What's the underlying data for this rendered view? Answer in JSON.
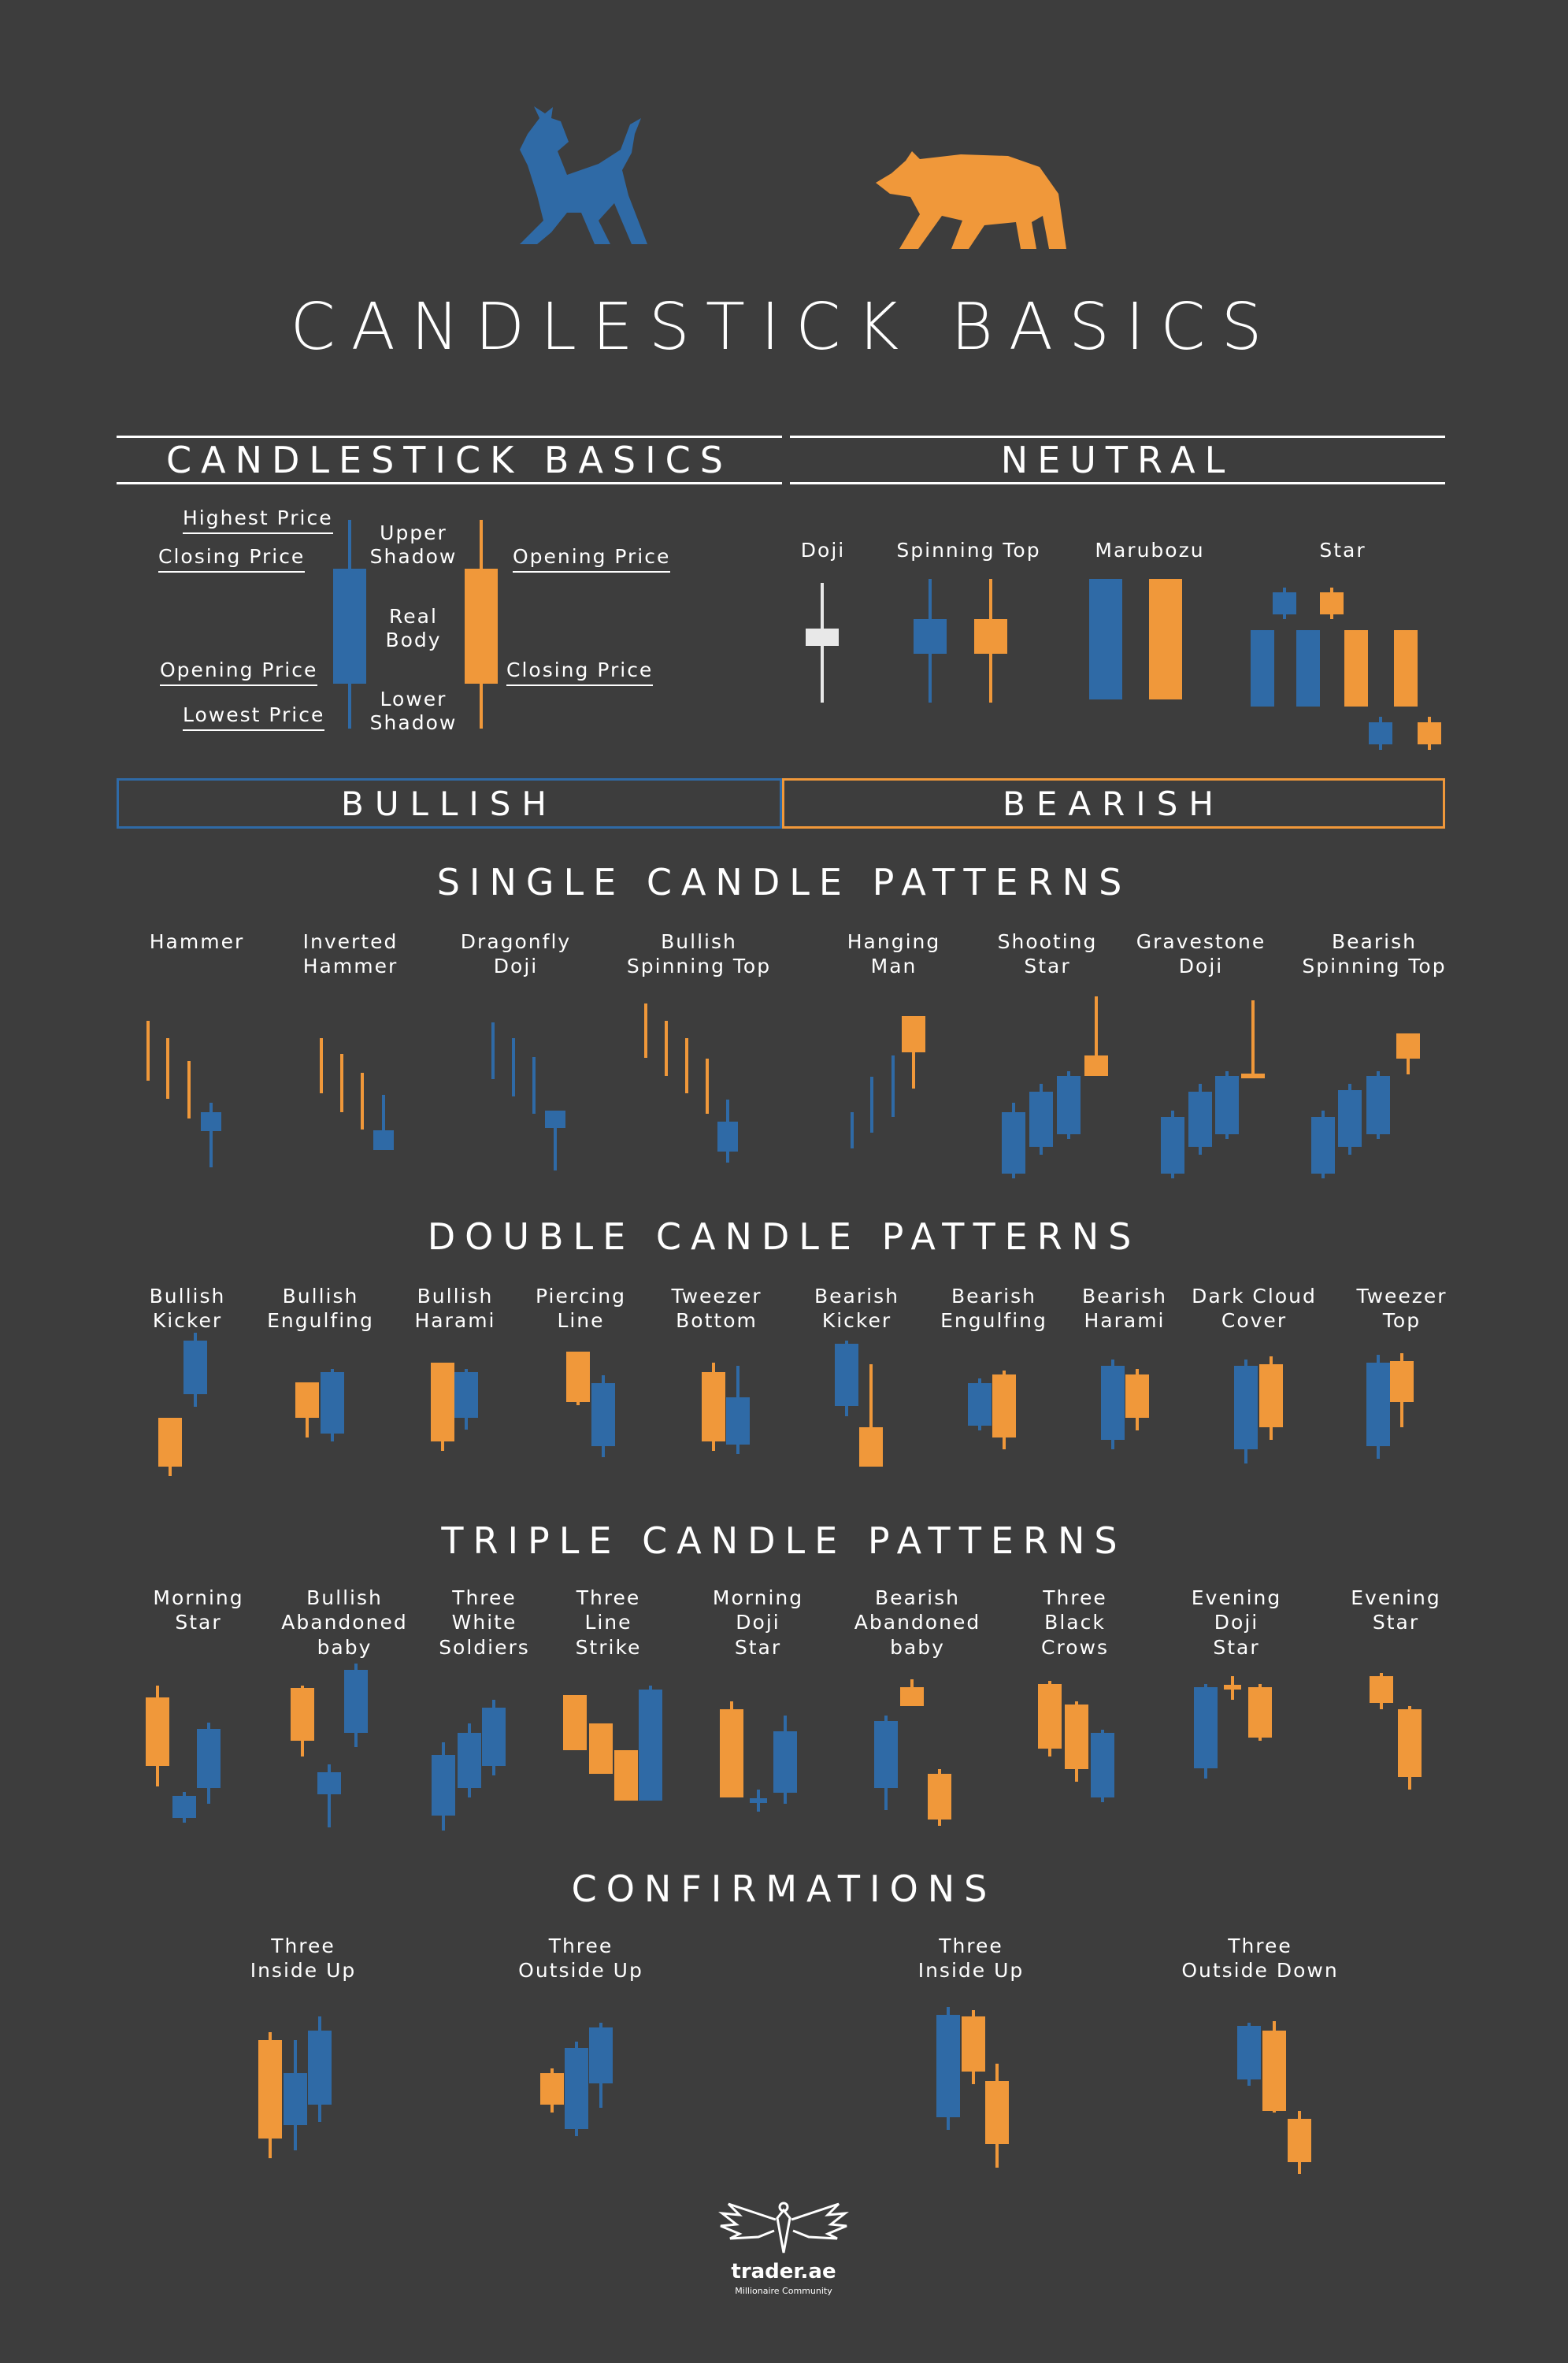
{
  "title": "CANDLESTICK BASICS",
  "colors": {
    "background": "#3d3d3d",
    "bullish": "#2f6aa6",
    "bearish": "#f0983a",
    "neutral": "#e8e8e8"
  },
  "icons": {
    "bull": "bull-icon",
    "bear": "bear-icon",
    "logo": "eagle-logo-icon"
  },
  "basics": {
    "heading": "CANDLESTICK BASICS",
    "bull_labels": {
      "highest": "Highest Price",
      "closing": "Closing Price",
      "opening": "Opening Price",
      "lowest": "Lowest Price"
    },
    "parts": {
      "upper_shadow": "Upper\nShadow",
      "real_body": "Real\nBody",
      "lower_shadow": "Lower\nShadow"
    },
    "bear_labels": {
      "opening": "Opening Price",
      "closing": "Closing Price"
    }
  },
  "neutral": {
    "heading": "NEUTRAL",
    "labels": [
      "Doji",
      "Spinning Top",
      "Marubozu",
      "Star"
    ]
  },
  "bullish_header": "BULLISH",
  "bearish_header": "BEARISH",
  "single": {
    "heading": "SINGLE CANDLE PATTERNS",
    "labels": [
      "Hammer",
      "Inverted\nHammer",
      "Dragonfly\nDoji",
      "Bullish\nSpinning Top",
      "Hanging\nMan",
      "Shooting\nStar",
      "Gravestone\nDoji",
      "Bearish\nSpinning Top"
    ]
  },
  "double": {
    "heading": "DOUBLE CANDLE PATTERNS",
    "labels": [
      "Bullish\nKicker",
      "Bullish\nEngulfing",
      "Bullish\nHarami",
      "Piercing\nLine",
      "Tweezer\nBottom",
      "Bearish\nKicker",
      "Bearish\nEngulfing",
      "Bearish\nHarami",
      "Dark Cloud\nCover",
      "Tweezer\nTop"
    ]
  },
  "triple": {
    "heading": "TRIPLE CANDLE PATTERNS",
    "labels": [
      "Morning\nStar",
      "Bullish\nAbandoned\nbaby",
      "Three\nWhite\nSoldiers",
      "Three\nLine\nStrike",
      "Morning\nDoji\nStar",
      "Bearish\nAbandoned\nbaby",
      "Three\nBlack\nCrows",
      "Evening\nDoji\nStar",
      "Evening\nStar"
    ]
  },
  "confirmations": {
    "heading": "CONFIRMATIONS",
    "labels": [
      "Three\nInside Up",
      "Three\nOutside Up",
      "Three\nInside Up",
      "Three\nOutside Down"
    ]
  },
  "brand": {
    "name": "trader.ae",
    "tagline": "Millionaire Community"
  }
}
